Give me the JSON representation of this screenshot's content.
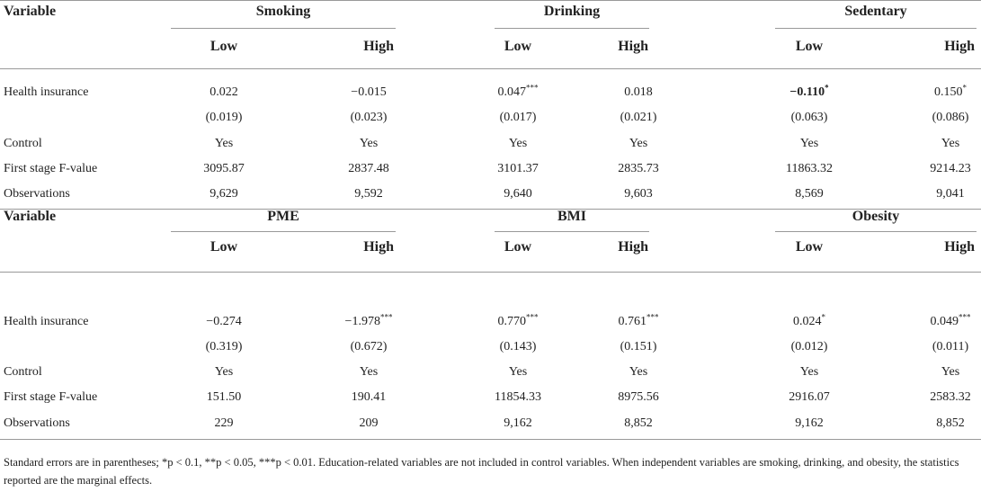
{
  "panels": [
    {
      "header": {
        "variable": "Variable",
        "groups": [
          {
            "name": "Smoking",
            "subheaders": [
              "Low",
              "High"
            ]
          },
          {
            "name": "Drinking",
            "subheaders": [
              "Low",
              "High"
            ]
          },
          {
            "name": "Sedentary",
            "subheaders": [
              "Low",
              "High"
            ]
          }
        ]
      },
      "rows": [
        {
          "label": "Health insurance",
          "cells": [
            "0.022",
            "−0.015",
            "0.047***",
            "0.018",
            {
              "text": "−0.110*",
              "bold": true
            },
            "0.150*"
          ]
        },
        {
          "cells": [
            "(0.019)",
            "(0.023)",
            "(0.017)",
            "(0.021)",
            "(0.063)",
            "(0.086)"
          ]
        },
        {
          "label": "Control",
          "cells": [
            "Yes",
            "Yes",
            "Yes",
            "Yes",
            "Yes",
            "Yes"
          ]
        },
        {
          "label": "First stage F-value",
          "cells": [
            "3095.87",
            "2837.48",
            "3101.37",
            "2835.73",
            "11863.32",
            "9214.23"
          ]
        },
        {
          "label": "Observations",
          "cells": [
            "9,629",
            "9,592",
            "9,640",
            "9,603",
            "8,569",
            "9,041"
          ]
        }
      ]
    },
    {
      "header": {
        "variable": "Variable",
        "groups": [
          {
            "name": "PME",
            "subheaders": [
              "Low",
              "High"
            ]
          },
          {
            "name": "BMI",
            "subheaders": [
              "Low",
              "High"
            ]
          },
          {
            "name": "Obesity",
            "subheaders": [
              "Low",
              "High"
            ]
          }
        ]
      },
      "rows": [
        {
          "label": "Health insurance",
          "cells": [
            "−0.274",
            "−1.978***",
            "0.770***",
            "0.761***",
            "0.024*",
            "0.049***"
          ]
        },
        {
          "cells": [
            "(0.319)",
            "(0.672)",
            "(0.143)",
            "(0.151)",
            "(0.012)",
            "(0.011)"
          ]
        },
        {
          "label": "Control",
          "cells": [
            "Yes",
            "Yes",
            "Yes",
            "Yes",
            "Yes",
            "Yes"
          ]
        },
        {
          "label": "First stage F-value",
          "cells": [
            "151.50",
            "190.41",
            "11854.33",
            "8975.56",
            "2916.07",
            "2583.32"
          ]
        },
        {
          "label": "Observations",
          "cells": [
            "229",
            "209",
            "9,162",
            "8,852",
            "9,162",
            "8,852"
          ]
        }
      ]
    }
  ],
  "footnote": "Standard errors are in parentheses; *p < 0.1, **p < 0.05, ***p < 0.01. Education-related variables are not included in control variables. When independent variables are smoking, drinking, and obesity, the statistics reported are the marginal effects."
}
